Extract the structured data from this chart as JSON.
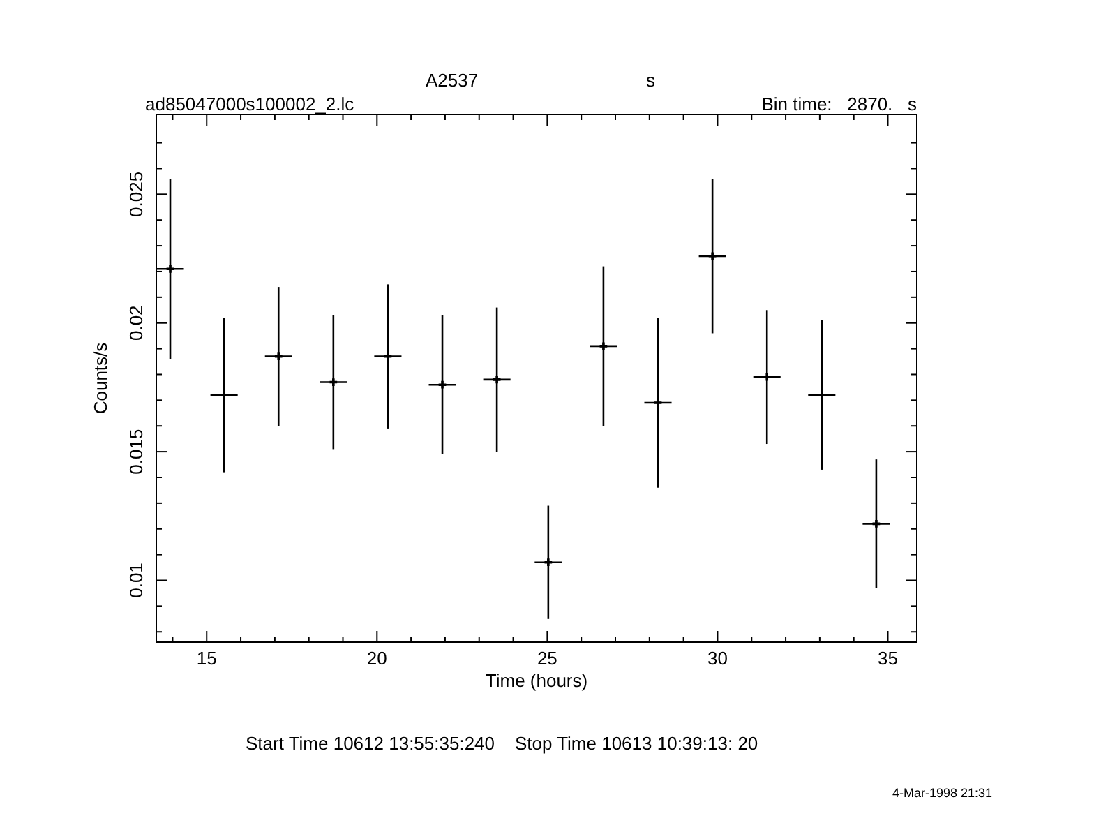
{
  "chart_data": {
    "type": "scatter",
    "title": "A2537",
    "xlabel": "Time (hours)",
    "ylabel": "Counts/s",
    "marker": "cross",
    "color": "#000000",
    "annotations": [
      "s",
      "ad85047000s100002_2.lc",
      "Bin time:   2870.   s",
      "Start Time 10612 13:55:35:240    Stop Time 10613 10:39:13: 20",
      "4-Mar-1998 21:31"
    ],
    "x": [
      13.93,
      15.51,
      17.11,
      18.72,
      20.32,
      21.92,
      23.52,
      25.03,
      26.65,
      28.25,
      29.85,
      31.45,
      33.06,
      34.66
    ],
    "values": [
      0.0221,
      0.0172,
      0.0187,
      0.0177,
      0.0187,
      0.0176,
      0.0178,
      0.0107,
      0.0191,
      0.0169,
      0.0226,
      0.0179,
      0.0172,
      0.0122
    ],
    "errors": [
      0.0035,
      0.003,
      0.0027,
      0.0026,
      0.0028,
      0.0027,
      0.0028,
      0.0022,
      0.0031,
      0.0033,
      0.003,
      0.0026,
      0.0029,
      0.0025
    ],
    "xerrors": [
      0.4,
      0.4,
      0.4,
      0.4,
      0.4,
      0.4,
      0.4,
      0.4,
      0.4,
      0.4,
      0.4,
      0.4,
      0.4,
      0.4
    ],
    "xlim": [
      13.52,
      35.85
    ],
    "ylim": [
      0.0076,
      0.0281
    ],
    "xticks": [
      {
        "value": 14,
        "label": null
      },
      15,
      {
        "value": 16,
        "label": null
      },
      {
        "value": 17,
        "label": null
      },
      {
        "value": 18,
        "label": null
      },
      {
        "value": 19,
        "label": null
      },
      20,
      {
        "value": 21,
        "label": null
      },
      {
        "value": 22,
        "label": null
      },
      {
        "value": 23,
        "label": null
      },
      {
        "value": 24,
        "label": null
      },
      25,
      {
        "value": 26,
        "label": null
      },
      {
        "value": 27,
        "label": null
      },
      {
        "value": 28,
        "label": null
      },
      {
        "value": 29,
        "label": null
      },
      30,
      {
        "value": 31,
        "label": null
      },
      {
        "value": 32,
        "label": null
      },
      {
        "value": 33,
        "label": null
      },
      {
        "value": 34,
        "label": null
      },
      35
    ],
    "yticks": [
      {
        "value": 0.008,
        "label": null
      },
      {
        "value": 0.009,
        "label": null
      },
      0.01,
      {
        "value": 0.011,
        "label": null
      },
      {
        "value": 0.012,
        "label": null
      },
      {
        "value": 0.013,
        "label": null
      },
      {
        "value": 0.014,
        "label": null
      },
      0.015,
      {
        "value": 0.016,
        "label": null
      },
      {
        "value": 0.017,
        "label": null
      },
      {
        "value": 0.018,
        "label": null
      },
      {
        "value": 0.019,
        "label": null
      },
      0.02,
      {
        "value": 0.021,
        "label": null
      },
      {
        "value": 0.022,
        "label": null
      },
      {
        "value": 0.023,
        "label": null
      },
      {
        "value": 0.024,
        "label": null
      },
      0.025,
      {
        "value": 0.026,
        "label": null
      },
      {
        "value": 0.027,
        "label": null
      }
    ]
  }
}
